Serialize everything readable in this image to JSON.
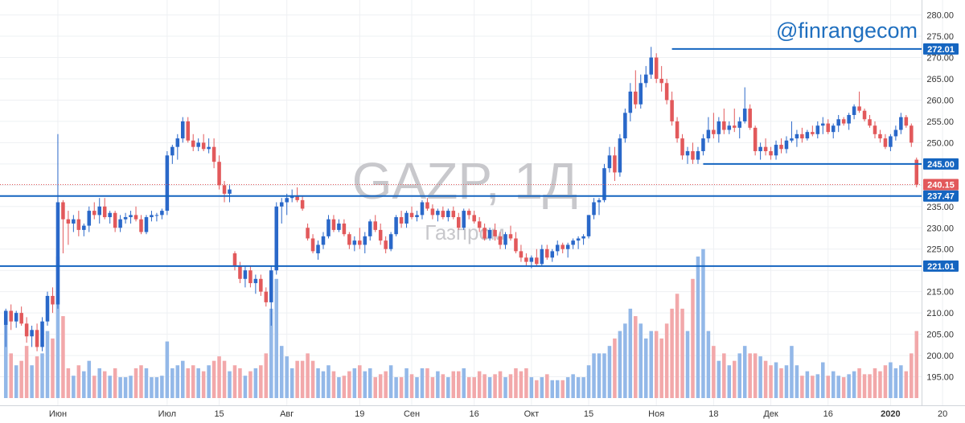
{
  "watermark": {
    "symbol": "GAZP, 1Д",
    "name": "Газпром"
  },
  "brand": "@finrangecom",
  "colors": {
    "up": "#2a68c9",
    "down": "#e2595b",
    "level": "#1565c0",
    "last": "#e2595b",
    "vol_up": "#93b8e8",
    "vol_down": "#f2a8aa",
    "grid": "#eef0f3",
    "axis": "#d0d4da"
  },
  "chart_data": {
    "type": "candlestick",
    "symbol": "GAZP",
    "interval": "1Д",
    "ylim": [
      190,
      282
    ],
    "y_ticks": [
      "280.00",
      "275.00",
      "270.00",
      "265.00",
      "260.00",
      "255.00",
      "250.00",
      "245.00",
      "240.00",
      "235.00",
      "230.00",
      "225.00",
      "220.00",
      "215.00",
      "210.00",
      "205.00",
      "200.00",
      "195.00"
    ],
    "x_labels": [
      {
        "label": "Июн",
        "i": 10
      },
      {
        "label": "Июл",
        "i": 31
      },
      {
        "label": "15",
        "i": 41
      },
      {
        "label": "Авг",
        "i": 54
      },
      {
        "label": "19",
        "i": 68
      },
      {
        "label": "Сен",
        "i": 78
      },
      {
        "label": "16",
        "i": 90
      },
      {
        "label": "Окт",
        "i": 101
      },
      {
        "label": "15",
        "i": 112
      },
      {
        "label": "Ноя",
        "i": 125
      },
      {
        "label": "18",
        "i": 136
      },
      {
        "label": "Дек",
        "i": 147
      },
      {
        "label": "16",
        "i": 158
      },
      {
        "label": "2020",
        "i": 170,
        "bold": true
      },
      {
        "label": "20",
        "i": 180
      }
    ],
    "levels": [
      {
        "value": 272.01,
        "label": "272.01",
        "from_i": 128
      },
      {
        "value": 245.0,
        "label": "245.00",
        "from_i": 134
      },
      {
        "value": 237.47,
        "label": "237.47",
        "from_i": 0
      },
      {
        "value": 221.01,
        "label": "221.01",
        "from_i": 0
      }
    ],
    "last_price": {
      "value": 240.15,
      "label": "240.15"
    },
    "volume_base": 190,
    "volume_max_price_equiv": 225,
    "volume_max": 100,
    "candles": [
      [
        207.2,
        211.0,
        202.0,
        210.5,
        50
      ],
      [
        210.5,
        212.0,
        206.0,
        208.0,
        30
      ],
      [
        208.0,
        210.5,
        206.5,
        210.0,
        22
      ],
      [
        210.0,
        211.5,
        207.0,
        207.5,
        25
      ],
      [
        207.5,
        209.0,
        203.0,
        204.5,
        35
      ],
      [
        204.5,
        207.0,
        202.0,
        206.0,
        22
      ],
      [
        206.0,
        207.5,
        201.0,
        202.0,
        28
      ],
      [
        202.0,
        209.0,
        201.0,
        208.0,
        30
      ],
      [
        208.0,
        215.0,
        207.0,
        214.0,
        45
      ],
      [
        214.0,
        216.0,
        210.0,
        212.0,
        40
      ],
      [
        212.0,
        252.0,
        211.0,
        236.0,
        95
      ],
      [
        236.0,
        236.5,
        224.0,
        232.0,
        55
      ],
      [
        232.0,
        234.0,
        226.0,
        231.0,
        20
      ],
      [
        231.0,
        233.0,
        229.0,
        232.0,
        15
      ],
      [
        232.0,
        234.0,
        228.0,
        229.5,
        22
      ],
      [
        229.5,
        231.0,
        228.0,
        230.5,
        18
      ],
      [
        230.5,
        235.0,
        229.0,
        234.0,
        25
      ],
      [
        234.0,
        236.0,
        232.0,
        233.0,
        15
      ],
      [
        233.0,
        237.0,
        231.0,
        235.0,
        20
      ],
      [
        235.0,
        237.0,
        232.0,
        232.5,
        18
      ],
      [
        232.5,
        234.0,
        231.0,
        233.5,
        15
      ],
      [
        233.5,
        234.0,
        229.0,
        230.0,
        20
      ],
      [
        230.0,
        233.0,
        229.0,
        232.0,
        14
      ],
      [
        232.0,
        233.5,
        231.0,
        232.5,
        14
      ],
      [
        232.5,
        234.0,
        231.0,
        233.0,
        15
      ],
      [
        233.0,
        235.0,
        231.5,
        232.0,
        20
      ],
      [
        232.0,
        233.0,
        228.5,
        229.0,
        22
      ],
      [
        229.0,
        233.0,
        228.5,
        232.5,
        20
      ],
      [
        232.5,
        234.0,
        231.5,
        233.0,
        14
      ],
      [
        233.0,
        233.5,
        231.5,
        233.0,
        14
      ],
      [
        233.0,
        234.5,
        232.0,
        234.0,
        15
      ],
      [
        234.0,
        248.0,
        233.0,
        247.0,
        38
      ],
      [
        247.0,
        249.5,
        245.0,
        249.0,
        20
      ],
      [
        249.0,
        252.0,
        246.0,
        251.0,
        22
      ],
      [
        251.0,
        256.0,
        250.0,
        255.0,
        25
      ],
      [
        255.0,
        256.0,
        250.0,
        250.5,
        20
      ],
      [
        250.5,
        252.0,
        248.0,
        249.0,
        22
      ],
      [
        249.0,
        251.0,
        248.0,
        250.0,
        20
      ],
      [
        250.0,
        252.0,
        248.0,
        248.5,
        18
      ],
      [
        248.5,
        251.0,
        247.5,
        249.0,
        22
      ],
      [
        249.0,
        251.0,
        244.0,
        245.5,
        25
      ],
      [
        245.5,
        247.0,
        239.0,
        240.0,
        28
      ],
      [
        240.0,
        241.0,
        236.0,
        238.0,
        25
      ],
      [
        238.0,
        240.0,
        236.0,
        239.0,
        18
      ],
      [
        224.0,
        224.5,
        220.0,
        221.0,
        22
      ],
      [
        221.0,
        222.0,
        217.0,
        218.0,
        20
      ],
      [
        218.0,
        221.0,
        216.0,
        220.0,
        15
      ],
      [
        220.0,
        221.0,
        216.0,
        217.0,
        18
      ],
      [
        217.0,
        219.0,
        214.5,
        218.0,
        20
      ],
      [
        218.0,
        219.0,
        214.0,
        215.0,
        22
      ],
      [
        215.0,
        216.0,
        211.5,
        212.5,
        30
      ],
      [
        212.5,
        221.0,
        207.0,
        220.0,
        60
      ],
      [
        220.0,
        236.0,
        219.0,
        235.0,
        80
      ],
      [
        235.0,
        237.0,
        231.0,
        236.0,
        35
      ],
      [
        236.0,
        238.0,
        233.0,
        237.0,
        28
      ],
      [
        237.0,
        239.0,
        236.0,
        237.5,
        20
      ],
      [
        237.5,
        239.5,
        236.0,
        236.5,
        25
      ],
      [
        236.5,
        237.5,
        234.0,
        234.5,
        25
      ],
      [
        230.0,
        231.0,
        227.0,
        227.5,
        30
      ],
      [
        227.5,
        228.5,
        224.0,
        224.5,
        25
      ],
      [
        224.0,
        227.0,
        222.5,
        226.0,
        20
      ],
      [
        226.0,
        229.0,
        225.0,
        228.0,
        18
      ],
      [
        228.0,
        233.0,
        227.5,
        232.0,
        22
      ],
      [
        232.0,
        233.0,
        229.0,
        229.5,
        18
      ],
      [
        229.5,
        232.0,
        229.0,
        231.0,
        14
      ],
      [
        231.0,
        232.0,
        228.0,
        228.5,
        15
      ],
      [
        228.5,
        229.0,
        225.0,
        226.0,
        18
      ],
      [
        226.0,
        228.0,
        224.5,
        227.0,
        20
      ],
      [
        227.0,
        230.0,
        225.0,
        226.0,
        22
      ],
      [
        226.0,
        229.0,
        224.0,
        228.0,
        18
      ],
      [
        228.0,
        232.0,
        227.0,
        231.5,
        20
      ],
      [
        231.5,
        233.0,
        229.0,
        229.5,
        14
      ],
      [
        229.5,
        231.0,
        226.0,
        227.0,
        16
      ],
      [
        227.0,
        228.0,
        224.0,
        225.0,
        18
      ],
      [
        225.0,
        229.0,
        224.5,
        228.5,
        22
      ],
      [
        228.5,
        233.0,
        228.0,
        232.5,
        14
      ],
      [
        232.5,
        234.0,
        230.0,
        231.0,
        14
      ],
      [
        231.0,
        234.0,
        230.0,
        233.5,
        20
      ],
      [
        233.5,
        235.0,
        232.0,
        232.5,
        16
      ],
      [
        232.5,
        234.0,
        231.5,
        233.0,
        14
      ],
      [
        233.0,
        236.5,
        232.0,
        236.0,
        20
      ],
      [
        236.0,
        237.0,
        234.0,
        234.5,
        20
      ],
      [
        234.5,
        235.5,
        232.0,
        233.0,
        14
      ],
      [
        233.0,
        234.5,
        231.5,
        234.0,
        18
      ],
      [
        234.0,
        235.0,
        232.0,
        232.5,
        16
      ],
      [
        232.5,
        234.5,
        231.5,
        234.0,
        14
      ],
      [
        234.0,
        235.0,
        232.0,
        232.5,
        18
      ],
      [
        232.5,
        233.5,
        229.5,
        230.0,
        18
      ],
      [
        230.0,
        234.5,
        229.5,
        234.0,
        20
      ],
      [
        234.0,
        234.5,
        232.0,
        233.0,
        14
      ],
      [
        233.0,
        234.0,
        231.0,
        231.5,
        14
      ],
      [
        231.5,
        232.5,
        229.0,
        230.0,
        18
      ],
      [
        230.0,
        231.0,
        227.0,
        227.5,
        16
      ],
      [
        227.5,
        230.0,
        227.0,
        229.5,
        14
      ],
      [
        229.5,
        231.0,
        227.0,
        228.0,
        16
      ],
      [
        228.0,
        229.0,
        225.0,
        226.0,
        18
      ],
      [
        226.0,
        229.0,
        225.0,
        228.5,
        14
      ],
      [
        228.5,
        230.5,
        227.0,
        227.5,
        16
      ],
      [
        227.5,
        229.0,
        224.0,
        224.5,
        20
      ],
      [
        224.5,
        226.0,
        222.0,
        223.0,
        18
      ],
      [
        223.0,
        224.0,
        221.0,
        222.0,
        20
      ],
      [
        222.0,
        223.5,
        220.5,
        223.0,
        14
      ],
      [
        223.0,
        225.0,
        221.0,
        221.5,
        12
      ],
      [
        221.5,
        226.0,
        221.0,
        225.0,
        14
      ],
      [
        225.0,
        226.0,
        222.5,
        223.0,
        16
      ],
      [
        223.0,
        225.0,
        222.0,
        224.5,
        12
      ],
      [
        224.5,
        227.0,
        223.5,
        226.0,
        12
      ],
      [
        226.0,
        226.5,
        224.0,
        225.0,
        12
      ],
      [
        225.0,
        226.5,
        223.0,
        226.0,
        14
      ],
      [
        226.0,
        227.5,
        225.0,
        227.0,
        16
      ],
      [
        227.0,
        228.0,
        225.0,
        227.5,
        14
      ],
      [
        227.5,
        228.5,
        226.0,
        228.0,
        14
      ],
      [
        228.0,
        233.0,
        227.5,
        233.0,
        22
      ],
      [
        233.0,
        237.0,
        232.0,
        236.0,
        30
      ],
      [
        236.0,
        237.0,
        233.0,
        236.5,
        30
      ],
      [
        236.5,
        245.0,
        236.0,
        244.0,
        30
      ],
      [
        244.0,
        249.0,
        243.0,
        247.0,
        35
      ],
      [
        247.0,
        249.0,
        241.0,
        243.0,
        40
      ],
      [
        243.0,
        252.0,
        242.0,
        251.0,
        45
      ],
      [
        251.0,
        258.0,
        250.0,
        257.0,
        50
      ],
      [
        257.0,
        264.0,
        255.0,
        262.0,
        60
      ],
      [
        262.0,
        267.0,
        258.0,
        259.0,
        55
      ],
      [
        259.0,
        266.0,
        258.0,
        264.0,
        50
      ],
      [
        264.0,
        268.0,
        263.0,
        266.0,
        40
      ],
      [
        266.0,
        272.5,
        265.0,
        270.0,
        45
      ],
      [
        270.0,
        271.0,
        264.0,
        265.0,
        45
      ],
      [
        265.0,
        268.0,
        262.0,
        264.0,
        40
      ],
      [
        264.0,
        265.0,
        259.0,
        260.0,
        50
      ],
      [
        260.0,
        262.0,
        254.0,
        255.0,
        60
      ],
      [
        255.0,
        256.0,
        250.0,
        251.0,
        70
      ],
      [
        251.0,
        252.0,
        246.0,
        247.0,
        60
      ],
      [
        247.0,
        249.0,
        245.0,
        248.0,
        45
      ],
      [
        248.0,
        250.0,
        245.0,
        246.0,
        80
      ],
      [
        246.0,
        249.0,
        245.0,
        248.0,
        95
      ],
      [
        248.0,
        252.0,
        247.0,
        251.0,
        100
      ],
      [
        251.0,
        256.0,
        250.0,
        253.0,
        45
      ],
      [
        253.0,
        257.0,
        251.0,
        252.0,
        35
      ],
      [
        252.0,
        256.0,
        250.0,
        255.0,
        25
      ],
      [
        255.0,
        258.0,
        252.0,
        253.0,
        30
      ],
      [
        253.0,
        255.0,
        252.0,
        254.0,
        22
      ],
      [
        254.0,
        258.0,
        252.5,
        253.5,
        25
      ],
      [
        253.5,
        256.0,
        251.0,
        255.0,
        30
      ],
      [
        255.0,
        263.0,
        254.5,
        258.0,
        35
      ],
      [
        258.0,
        259.0,
        253.0,
        253.5,
        30
      ],
      [
        253.5,
        254.0,
        247.0,
        248.0,
        30
      ],
      [
        248.0,
        250.0,
        246.0,
        249.0,
        28
      ],
      [
        249.0,
        251.0,
        247.0,
        248.0,
        25
      ],
      [
        248.0,
        249.0,
        246.0,
        247.0,
        22
      ],
      [
        247.0,
        250.5,
        246.0,
        249.5,
        24
      ],
      [
        249.5,
        251.0,
        247.5,
        248.5,
        20
      ],
      [
        248.5,
        251.5,
        247.5,
        250.5,
        22
      ],
      [
        250.5,
        255.0,
        250.0,
        251.0,
        35
      ],
      [
        251.0,
        253.0,
        249.0,
        252.0,
        22
      ],
      [
        252.0,
        253.5,
        250.0,
        251.0,
        15
      ],
      [
        251.0,
        253.0,
        250.5,
        252.5,
        18
      ],
      [
        252.5,
        254.0,
        251.5,
        252.0,
        15
      ],
      [
        252.0,
        255.0,
        251.0,
        254.0,
        16
      ],
      [
        254.0,
        256.0,
        252.0,
        254.5,
        24
      ],
      [
        254.5,
        255.5,
        252.0,
        252.5,
        15
      ],
      [
        252.5,
        254.5,
        251.0,
        254.0,
        18
      ],
      [
        254.0,
        256.5,
        252.5,
        255.5,
        15
      ],
      [
        255.5,
        256.0,
        254.0,
        254.5,
        14
      ],
      [
        254.5,
        257.0,
        253.0,
        256.5,
        16
      ],
      [
        256.5,
        259.0,
        255.5,
        258.5,
        18
      ],
      [
        258.5,
        262.0,
        257.0,
        257.5,
        20
      ],
      [
        257.5,
        258.0,
        255.0,
        255.5,
        16
      ],
      [
        255.5,
        256.5,
        253.5,
        254.0,
        16
      ],
      [
        254.0,
        255.0,
        251.0,
        252.0,
        20
      ],
      [
        252.0,
        253.0,
        250.0,
        251.0,
        18
      ],
      [
        251.0,
        252.0,
        248.5,
        249.0,
        22
      ],
      [
        249.0,
        252.0,
        248.0,
        251.5,
        24
      ],
      [
        251.5,
        254.0,
        250.5,
        253.0,
        20
      ],
      [
        253.0,
        257.0,
        252.0,
        256.0,
        22
      ],
      [
        256.0,
        256.5,
        253.5,
        254.0,
        18
      ],
      [
        254.0,
        254.5,
        249.0,
        250.0,
        30
      ],
      [
        246.0,
        246.5,
        239.5,
        240.15,
        45
      ]
    ]
  }
}
